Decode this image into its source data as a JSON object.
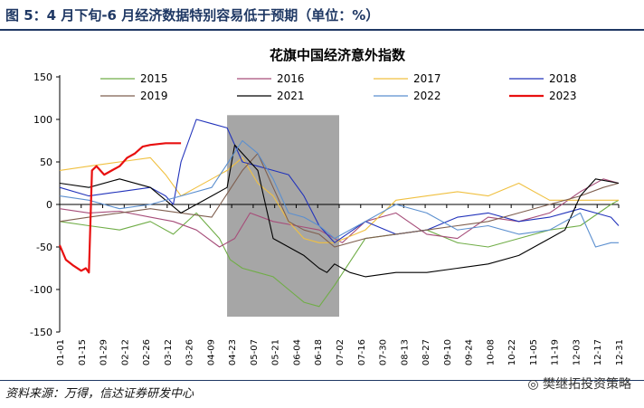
{
  "figure": {
    "title": "图 5：4 月下旬-6 月经济数据特别容易低于预期（单位：%）",
    "source": "资料来源：万得，信达证券研发中心",
    "watermark": "樊继拓投资策略"
  },
  "chart_data": {
    "type": "line",
    "title": "花旗中国经济意外指数",
    "xlabel": "",
    "ylabel": "",
    "ylim": [
      -150,
      150
    ],
    "yticks": [
      150,
      100,
      50,
      0,
      -50,
      -100,
      -150
    ],
    "x_ticks": [
      "01-01",
      "01-15",
      "01-29",
      "02-12",
      "02-26",
      "03-12",
      "03-26",
      "04-09",
      "04-23",
      "05-07",
      "05-21",
      "06-04",
      "06-18",
      "07-02",
      "07-16",
      "07-30",
      "08-13",
      "08-27",
      "09-10",
      "09-24",
      "10-08",
      "10-22",
      "11-05",
      "11-19",
      "12-03",
      "12-17",
      "12-31"
    ],
    "shaded_region": {
      "from": "04-20",
      "to": "07-02",
      "color": "#a6a6a6"
    },
    "legend_position": "top",
    "series": [
      {
        "name": "2015",
        "color": "#70ad47",
        "x": [
          1,
          20,
          40,
          60,
          75,
          90,
          105,
          112,
          120,
          130,
          140,
          150,
          160,
          170,
          180,
          200,
          220,
          240,
          260,
          280,
          300,
          320,
          340,
          360,
          365
        ],
        "values": [
          -20,
          -25,
          -30,
          -20,
          -35,
          -10,
          -40,
          -65,
          -75,
          -80,
          -85,
          -100,
          -115,
          -120,
          -95,
          -40,
          -35,
          -30,
          -45,
          -50,
          -40,
          -30,
          -25,
          0,
          5
        ]
      },
      {
        "name": "2016",
        "color": "#a64d79",
        "x": [
          1,
          20,
          40,
          60,
          75,
          90,
          105,
          115,
          125,
          140,
          155,
          170,
          185,
          200,
          220,
          240,
          260,
          280,
          300,
          320,
          340,
          355,
          365
        ],
        "values": [
          -5,
          -10,
          -8,
          -15,
          -20,
          -30,
          -50,
          -40,
          -10,
          -20,
          -25,
          -30,
          -45,
          -20,
          -10,
          -35,
          -40,
          -15,
          -20,
          -10,
          15,
          30,
          25
        ]
      },
      {
        "name": "2017",
        "color": "#f0c040",
        "x": [
          1,
          20,
          40,
          60,
          70,
          80,
          90,
          100,
          110,
          120,
          130,
          140,
          150,
          160,
          170,
          180,
          200,
          220,
          240,
          260,
          280,
          300,
          320,
          340,
          365
        ],
        "values": [
          40,
          45,
          50,
          55,
          35,
          10,
          20,
          30,
          40,
          55,
          25,
          10,
          -20,
          -40,
          -45,
          -45,
          -30,
          5,
          10,
          15,
          10,
          25,
          5,
          5,
          5
        ]
      },
      {
        "name": "2018",
        "color": "#2233bb",
        "x": [
          1,
          20,
          40,
          60,
          70,
          75,
          80,
          90,
          100,
          110,
          120,
          130,
          140,
          150,
          160,
          170,
          180,
          200,
          220,
          240,
          260,
          280,
          300,
          320,
          340,
          350,
          360,
          365
        ],
        "values": [
          20,
          10,
          15,
          20,
          10,
          0,
          50,
          100,
          95,
          90,
          50,
          45,
          40,
          35,
          10,
          -25,
          -45,
          -20,
          -35,
          -30,
          -15,
          -10,
          -20,
          -15,
          -5,
          -10,
          -15,
          -25
        ]
      },
      {
        "name": "2019",
        "color": "#7f5f4f",
        "x": [
          1,
          20,
          40,
          60,
          80,
          100,
          120,
          130,
          140,
          150,
          160,
          170,
          180,
          200,
          220,
          240,
          260,
          280,
          300,
          320,
          340,
          355,
          365
        ],
        "values": [
          -20,
          -15,
          -10,
          -5,
          -10,
          -15,
          40,
          60,
          20,
          -20,
          -30,
          -35,
          -50,
          -40,
          -35,
          -30,
          -25,
          -20,
          -10,
          0,
          10,
          20,
          25
        ]
      },
      {
        "name": "2021",
        "color": "#000000",
        "x": [
          1,
          20,
          40,
          60,
          80,
          100,
          110,
          115,
          120,
          130,
          135,
          140,
          150,
          160,
          170,
          175,
          180,
          190,
          200,
          220,
          240,
          260,
          280,
          300,
          320,
          330,
          340,
          350,
          365
        ],
        "values": [
          25,
          20,
          30,
          20,
          -10,
          10,
          20,
          70,
          60,
          40,
          0,
          -40,
          -50,
          -60,
          -75,
          -80,
          -70,
          -80,
          -85,
          -80,
          -80,
          -75,
          -70,
          -60,
          -40,
          -30,
          10,
          30,
          25
        ]
      },
      {
        "name": "2022",
        "color": "#5b8fcf",
        "x": [
          1,
          20,
          40,
          60,
          80,
          100,
          120,
          130,
          140,
          150,
          160,
          170,
          180,
          200,
          220,
          240,
          260,
          280,
          300,
          320,
          340,
          350,
          360,
          365
        ],
        "values": [
          10,
          5,
          -5,
          0,
          10,
          20,
          75,
          60,
          30,
          -10,
          -15,
          -25,
          -40,
          -20,
          0,
          -10,
          -30,
          -25,
          -35,
          -30,
          -10,
          -50,
          -45,
          -45
        ]
      },
      {
        "name": "2023",
        "color": "#e81010",
        "x": [
          1,
          5,
          10,
          15,
          18,
          20,
          22,
          25,
          30,
          35,
          40,
          45,
          50,
          55,
          60,
          70,
          80
        ],
        "values": [
          -48,
          -65,
          -72,
          -78,
          -75,
          -80,
          40,
          45,
          35,
          40,
          45,
          55,
          60,
          68,
          70,
          72,
          72
        ]
      }
    ]
  }
}
